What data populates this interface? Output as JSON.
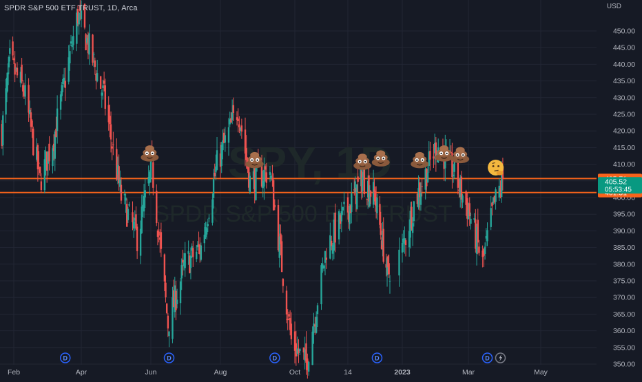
{
  "header": {
    "symbol_title": "SPDR S&P 500 ETF TRUST, 1D, Arca",
    "currency": "USD"
  },
  "watermark": {
    "ticker": "SPY, 1D",
    "name": "SPDR S&P 500 ETF TRUST"
  },
  "colors": {
    "background": "#161a25",
    "grid": "#222634",
    "up": "#26a69a",
    "down": "#ef5350",
    "level_line": "#f7631b",
    "last_price_label": "#089981",
    "text": "#b2b5be",
    "dividend_marker": "#2962ff"
  },
  "chart_data": {
    "type": "candlestick",
    "symbol": "SPY",
    "interval": "1D",
    "y_axis": {
      "min": 350,
      "max": 450,
      "ticks": [
        "450.00",
        "445.00",
        "440.00",
        "435.00",
        "430.00",
        "425.00",
        "420.00",
        "415.00",
        "410.00",
        "405.00",
        "400.00",
        "395.00",
        "390.00",
        "385.00",
        "380.00",
        "375.00",
        "370.00",
        "365.00",
        "360.00",
        "355.00",
        "350.00"
      ],
      "unit": "USD"
    },
    "x_axis": {
      "labels": [
        {
          "label": "Feb",
          "date": "2022-02-01"
        },
        {
          "label": "Apr",
          "date": "2022-04-01"
        },
        {
          "label": "Jun",
          "date": "2022-06-01"
        },
        {
          "label": "Aug",
          "date": "2022-08-01"
        },
        {
          "label": "Oct",
          "date": "2022-10-03"
        },
        {
          "label": "14",
          "date": "2022-11-14"
        },
        {
          "label": "2023",
          "date": "2023-01-03"
        },
        {
          "label": "Mar",
          "date": "2023-03-01"
        },
        {
          "label": "May",
          "date": "2023-05-01"
        }
      ]
    },
    "price_path": [
      {
        "date": "2022-01-20",
        "close": 420
      },
      {
        "date": "2022-01-28",
        "close": 441
      },
      {
        "date": "2022-02-10",
        "close": 432
      },
      {
        "date": "2022-02-24",
        "close": 405
      },
      {
        "date": "2022-03-08",
        "close": 418
      },
      {
        "date": "2022-03-29",
        "close": 455
      },
      {
        "date": "2022-04-07",
        "close": 446
      },
      {
        "date": "2022-04-21",
        "close": 430
      },
      {
        "date": "2022-05-06",
        "close": 400
      },
      {
        "date": "2022-05-20",
        "close": 388
      },
      {
        "date": "2022-06-02",
        "close": 409
      },
      {
        "date": "2022-06-16",
        "close": 362
      },
      {
        "date": "2022-07-01",
        "close": 380
      },
      {
        "date": "2022-07-15",
        "close": 385
      },
      {
        "date": "2022-07-29",
        "close": 410
      },
      {
        "date": "2022-08-16",
        "close": 427
      },
      {
        "date": "2022-08-26",
        "close": 405
      },
      {
        "date": "2022-09-12",
        "close": 408
      },
      {
        "date": "2022-09-30",
        "close": 357
      },
      {
        "date": "2022-10-12",
        "close": 350
      },
      {
        "date": "2022-10-28",
        "close": 385
      },
      {
        "date": "2022-11-10",
        "close": 394
      },
      {
        "date": "2022-11-30",
        "close": 406
      },
      {
        "date": "2022-12-14",
        "close": 400
      },
      {
        "date": "2022-12-28",
        "close": 376
      },
      {
        "date": "2023-01-13",
        "close": 398
      },
      {
        "date": "2023-02-02",
        "close": 416
      },
      {
        "date": "2023-02-16",
        "close": 408
      },
      {
        "date": "2023-03-02",
        "close": 395
      },
      {
        "date": "2023-03-13",
        "close": 380
      },
      {
        "date": "2023-03-22",
        "close": 397
      },
      {
        "date": "2023-03-30",
        "close": 405.52
      }
    ],
    "horizontal_levels": [
      {
        "price": 405.71,
        "label": "405.71",
        "color": "#f7631b"
      },
      {
        "price": 401.51,
        "label": "401.51",
        "color": "#f7631b"
      }
    ],
    "last_price": {
      "price": 405.52,
      "label": "405.52",
      "countdown": "05:53:45"
    },
    "dividend_markers": [
      {
        "date": "2022-03-18",
        "label": "D"
      },
      {
        "date": "2022-06-17",
        "label": "D"
      },
      {
        "date": "2022-09-16",
        "label": "D"
      },
      {
        "date": "2022-12-16",
        "label": "D"
      },
      {
        "date": "2023-03-17",
        "label": "D"
      }
    ],
    "event_markers": [
      {
        "date": "2023-03-28",
        "icon": "lightning-icon"
      }
    ],
    "annotations": [
      {
        "date": "2022-05-31",
        "price": 413.5,
        "icon": "poop-emoji"
      },
      {
        "date": "2022-08-30",
        "price": 411.5,
        "icon": "poop-emoji"
      },
      {
        "date": "2022-11-30",
        "price": 411,
        "icon": "poop-emoji"
      },
      {
        "date": "2022-12-20",
        "price": 412,
        "icon": "poop-emoji"
      },
      {
        "date": "2023-01-18",
        "price": 411.5,
        "icon": "poop-emoji"
      },
      {
        "date": "2023-02-08",
        "price": 413.5,
        "icon": "poop-emoji"
      },
      {
        "date": "2023-02-22",
        "price": 413,
        "icon": "poop-emoji"
      },
      {
        "date": "2023-03-24",
        "price": 409,
        "icon": "thinking-face-emoji"
      }
    ]
  }
}
